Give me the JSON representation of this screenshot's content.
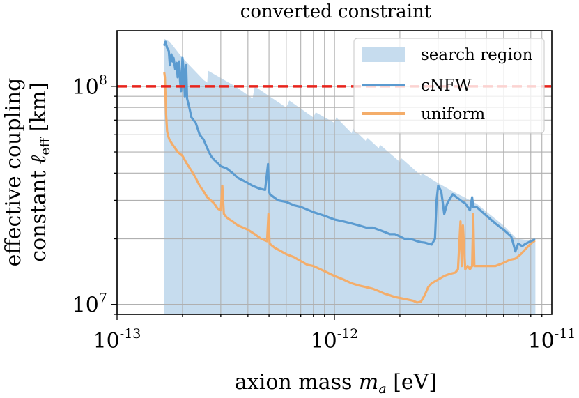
{
  "chart_data": {
    "type": "line",
    "title": "converted constraint",
    "xlabel_prefix": "axion mass ",
    "xlabel_var": "m",
    "xlabel_sub": "a",
    "xlabel_suffix": " [eV]",
    "ylabel_line1": "effective coupling",
    "ylabel_line2_prefix": "constant ",
    "ylabel_line2_var": "ℓ",
    "ylabel_line2_sub": "eff",
    "ylabel_line2_suffix": " [km]",
    "xscale": "log",
    "yscale": "log",
    "xlim": [
      1e-13,
      1e-11
    ],
    "ylim": [
      9000000.0,
      180000000.0
    ],
    "grid": true,
    "legend_position": "upper right",
    "x_ticks": [
      {
        "value": 1e-13,
        "base": "10",
        "exp": "-13"
      },
      {
        "value": 1e-12,
        "base": "10",
        "exp": "-12"
      },
      {
        "value": 1e-11,
        "base": "10",
        "exp": "-11"
      }
    ],
    "y_ticks": [
      {
        "value": 10000000.0,
        "base": "10",
        "exp": "7"
      },
      {
        "value": 100000000.0,
        "base": "10",
        "exp": "8"
      }
    ],
    "reference_line": {
      "y": 100000000.0,
      "color": "#e8241c",
      "style": "dashed"
    },
    "series": [
      {
        "name": "search region",
        "kind": "fill",
        "color": "#c6dcee",
        "x": [
          1.65e-13,
          1.65e-13,
          1.75e-13,
          2e-13,
          2.5e-13,
          2.6e-13,
          2.62e-13,
          3.5e-13,
          4.2e-13,
          4.3e-13,
          6e-13,
          6.2e-13,
          8e-13,
          8.2e-13,
          1e-12,
          1.02e-12,
          1.2e-12,
          1.22e-12,
          1.4e-12,
          1.42e-12,
          1.6e-12,
          1.62e-12,
          2e-12,
          2.02e-12,
          2.5e-12,
          2.52e-12,
          3e-12,
          3.5e-12,
          4.5e-12,
          6e-12,
          6.9e-12,
          8.4e-12,
          8.4e-12
        ],
        "y": [
          9000000.0,
          165000000.0,
          160000000.0,
          135000000.0,
          107000000.0,
          104000000.0,
          118000000.0,
          100000000.0,
          88000000.0,
          100000000.0,
          80000000.0,
          86000000.0,
          72000000.0,
          76000000.0,
          68000000.0,
          72000000.0,
          61000000.0,
          64000000.0,
          56000000.0,
          58000000.0,
          52000000.0,
          54000000.0,
          45000000.0,
          47000000.0,
          39000000.0,
          40000000.0,
          36000000.0,
          33000000.0,
          29000000.0,
          23000000.0,
          20000000.0,
          19500000.0,
          9000000.0
        ]
      },
      {
        "name": "cNFW",
        "kind": "line",
        "color": "#5b9bd0",
        "x": [
          1.65e-13,
          1.67e-13,
          1.7e-13,
          1.73e-13,
          1.75e-13,
          1.78e-13,
          1.8e-13,
          1.82e-13,
          1.85e-13,
          1.88e-13,
          1.9e-13,
          1.93e-13,
          1.95e-13,
          1.97e-13,
          2e-13,
          2.03e-13,
          2.05e-13,
          2.08e-13,
          2.1e-13,
          2.15e-13,
          2.2e-13,
          2.3e-13,
          2.4e-13,
          2.5e-13,
          2.6e-13,
          2.7e-13,
          2.8e-13,
          3e-13,
          3.2e-13,
          3.4e-13,
          3.6e-13,
          3.8e-13,
          4e-13,
          4.2e-13,
          4.5e-13,
          4.8e-13,
          4.95e-13,
          5e-13,
          5.05e-13,
          5.5e-13,
          6e-13,
          6.5e-13,
          7e-13,
          8e-13,
          9e-13,
          1e-12,
          1.1e-12,
          1.2e-12,
          1.3e-12,
          1.4e-12,
          1.5e-12,
          1.6e-12,
          1.7e-12,
          1.8e-12,
          1.9e-12,
          2e-12,
          2.1e-12,
          2.2e-12,
          2.3e-12,
          2.4e-12,
          2.5e-12,
          2.6e-12,
          2.7e-12,
          2.8e-12,
          2.9e-12,
          2.95e-12,
          3e-12,
          3.1e-12,
          3.2e-12,
          3.3e-12,
          3.5e-12,
          3.8e-12,
          4e-12,
          4.2e-12,
          4.3e-12,
          4.35e-12,
          4.5e-12,
          5e-12,
          5.5e-12,
          6e-12,
          6.5e-12,
          6.6e-12,
          6.8e-12,
          7e-12,
          7.3e-12,
          7.6e-12,
          8e-12,
          8.3e-12
        ],
        "y": [
          155000000.0,
          160000000.0,
          150000000.0,
          145000000.0,
          125000000.0,
          140000000.0,
          130000000.0,
          135000000.0,
          120000000.0,
          128000000.0,
          110000000.0,
          130000000.0,
          105000000.0,
          95000000.0,
          135000000.0,
          115000000.0,
          90000000.0,
          125000000.0,
          88000000.0,
          80000000.0,
          72000000.0,
          68000000.0,
          60000000.0,
          57000000.0,
          52000000.0,
          48000000.0,
          46000000.0,
          43000000.0,
          42000000.0,
          40000000.0,
          38000000.0,
          37000000.0,
          36000000.0,
          35000000.0,
          34000000.0,
          33500000.0,
          44000000.0,
          33000000.0,
          32000000.0,
          30000000.0,
          29500000.0,
          28500000.0,
          28000000.0,
          26500000.0,
          25500000.0,
          24500000.0,
          24000000.0,
          23500000.0,
          23000000.0,
          22500000.0,
          22500000.0,
          22000000.0,
          21500000.0,
          21000000.0,
          21000000.0,
          20500000.0,
          20000000.0,
          20000000.0,
          19800000.0,
          19500000.0,
          19300000.0,
          19200000.0,
          19000000.0,
          18800000.0,
          20000000.0,
          30000000.0,
          35000000.0,
          33000000.0,
          26000000.0,
          29000000.0,
          32000000.0,
          30000000.0,
          29000000.0,
          27000000.0,
          31000000.0,
          28000000.0,
          28000000.0,
          25500000.0,
          23500000.0,
          22000000.0,
          20500000.0,
          19500000.0,
          17500000.0,
          19000000.0,
          18500000.0,
          19000000.0,
          19500000.0,
          19800000.0
        ]
      },
      {
        "name": "uniform",
        "kind": "line",
        "color": "#f4ad6a",
        "x": [
          1.65e-13,
          1.66e-13,
          1.68e-13,
          1.7e-13,
          1.72e-13,
          1.74e-13,
          1.76e-13,
          1.78e-13,
          1.8e-13,
          1.85e-13,
          1.9e-13,
          1.95e-13,
          2e-13,
          2.1e-13,
          2.2e-13,
          2.3e-13,
          2.4e-13,
          2.5e-13,
          2.6e-13,
          2.7e-13,
          2.8e-13,
          2.9e-13,
          3e-13,
          3.05e-13,
          3.1e-13,
          3.2e-13,
          3.4e-13,
          3.6e-13,
          3.8e-13,
          4e-13,
          4.3e-13,
          4.6e-13,
          4.9e-13,
          4.97e-13,
          5.03e-13,
          5.3e-13,
          5.7e-13,
          6e-13,
          6.5e-13,
          7e-13,
          7.5e-13,
          8e-13,
          9e-13,
          1e-12,
          1.1e-12,
          1.2e-12,
          1.3e-12,
          1.4e-12,
          1.5e-12,
          1.6e-12,
          1.7e-12,
          1.8e-12,
          1.9e-12,
          2e-12,
          2.1e-12,
          2.2e-12,
          2.3e-12,
          2.4e-12,
          2.5e-12,
          2.6e-12,
          2.7e-12,
          2.8e-12,
          3e-12,
          3.2e-12,
          3.4e-12,
          3.6e-12,
          3.7e-12,
          3.8e-12,
          3.85e-12,
          3.9e-12,
          4e-12,
          4.1e-12,
          4.2e-12,
          4.3e-12,
          4.35e-12,
          4.4e-12,
          4.6e-12,
          5e-12,
          5.5e-12,
          6e-12,
          6.4e-12,
          6.8e-12,
          7.2e-12,
          7.6e-12,
          8e-12,
          8.3e-12
        ],
        "y": [
          115000000.0,
          110000000.0,
          75000000.0,
          62000000.0,
          59000000.0,
          57000000.0,
          56000000.0,
          55000000.0,
          54000000.0,
          52000000.0,
          50000000.0,
          49000000.0,
          48000000.0,
          44000000.0,
          41000000.0,
          38000000.0,
          35000000.0,
          33000000.0,
          31000000.0,
          30000000.0,
          29000000.0,
          27500000.0,
          27000000.0,
          35000000.0,
          26000000.0,
          25000000.0,
          24000000.0,
          23000000.0,
          22500000.0,
          22000000.0,
          21000000.0,
          20000000.0,
          19500000.0,
          26000000.0,
          19000000.0,
          18200000.0,
          17500000.0,
          17000000.0,
          16500000.0,
          15800000.0,
          15200000.0,
          15000000.0,
          14200000.0,
          13500000.0,
          13000000.0,
          12500000.0,
          12200000.0,
          12000000.0,
          11800000.0,
          11500000.0,
          11200000.0,
          11000000.0,
          10800000.0,
          10700000.0,
          10600000.0,
          10500000.0,
          10400000.0,
          10200000.0,
          10300000.0,
          11000000.0,
          12000000.0,
          12500000.0,
          13000000.0,
          13500000.0,
          13800000.0,
          14000000.0,
          14500000.0,
          24000000.0,
          15000000.0,
          23000000.0,
          14500000.0,
          15000000.0,
          14500000.0,
          15000000.0,
          26000000.0,
          15000000.0,
          15000000.0,
          15000000.0,
          15000000.0,
          15500000.0,
          16000000.0,
          16200000.0,
          17000000.0,
          18000000.0,
          19000000.0,
          19500000.0
        ]
      }
    ]
  }
}
